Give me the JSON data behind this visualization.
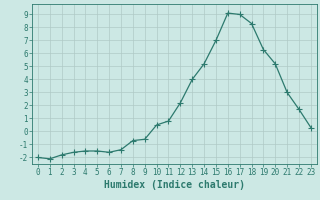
{
  "x": [
    0,
    1,
    2,
    3,
    4,
    5,
    6,
    7,
    8,
    9,
    10,
    11,
    12,
    13,
    14,
    15,
    16,
    17,
    18,
    19,
    20,
    21,
    22,
    23
  ],
  "y": [
    -2.0,
    -2.1,
    -1.8,
    -1.6,
    -1.5,
    -1.5,
    -1.6,
    -1.4,
    -0.7,
    -0.6,
    0.5,
    0.8,
    2.2,
    4.0,
    5.2,
    7.0,
    9.1,
    9.0,
    8.3,
    6.3,
    5.2,
    3.0,
    1.7,
    0.3
  ],
  "line_color": "#2d7a6e",
  "marker": "+",
  "marker_size": 4,
  "bg_color": "#cce8e4",
  "grid_color": "#b0cac6",
  "xlabel": "Humidex (Indice chaleur)",
  "xlim": [
    -0.5,
    23.5
  ],
  "ylim": [
    -2.5,
    9.8
  ],
  "yticks": [
    -2,
    -1,
    0,
    1,
    2,
    3,
    4,
    5,
    6,
    7,
    8,
    9
  ],
  "xticks": [
    0,
    1,
    2,
    3,
    4,
    5,
    6,
    7,
    8,
    9,
    10,
    11,
    12,
    13,
    14,
    15,
    16,
    17,
    18,
    19,
    20,
    21,
    22,
    23
  ],
  "tick_fontsize": 5.5,
  "xlabel_fontsize": 7.0,
  "axis_color": "#2d7a6e",
  "linewidth": 0.9
}
